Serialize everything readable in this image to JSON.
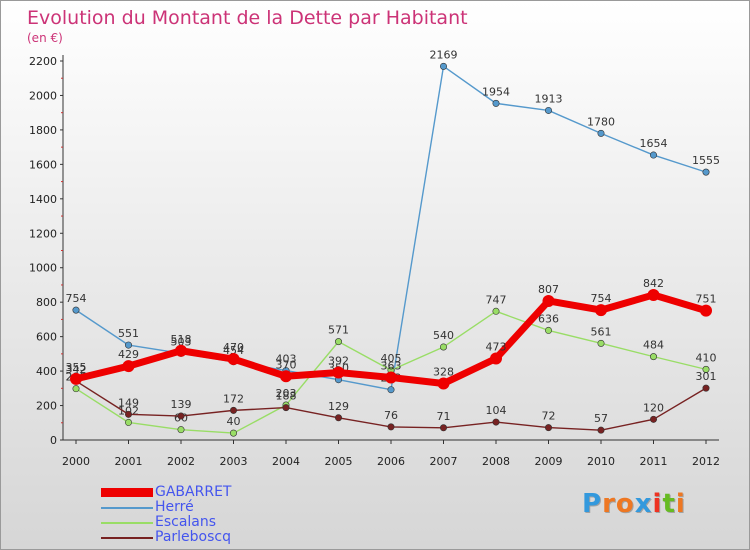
{
  "header": {
    "title": "Evolution du Montant de la Dette par Habitant",
    "subtitle": "(en €)"
  },
  "chart_data": {
    "type": "line",
    "x": [
      2000,
      2001,
      2002,
      2003,
      2004,
      2005,
      2006,
      2007,
      2008,
      2009,
      2010,
      2011,
      2012
    ],
    "ylim": [
      0,
      2200
    ],
    "yticks": [
      0,
      200,
      400,
      600,
      800,
      1000,
      1200,
      1400,
      1600,
      1800,
      2000,
      2200
    ],
    "grid": false,
    "legend_position": "bottom-left",
    "series": [
      {
        "name": "Herré",
        "color": "#5599cc",
        "values": [
          754,
          551,
          503,
          454,
          403,
          350,
          292,
          2169,
          1954,
          1913,
          1780,
          1654,
          1555
        ]
      },
      {
        "name": "Escalans",
        "color": "#99dd66",
        "values": [
          298,
          102,
          60,
          40,
          203,
          571,
          405,
          540,
          747,
          636,
          561,
          484,
          410
        ]
      },
      {
        "name": "Parleboscq",
        "color": "#772222",
        "values": [
          342,
          149,
          139,
          172,
          188,
          129,
          76,
          71,
          104,
          72,
          57,
          120,
          301
        ]
      },
      {
        "name": "GABARRET",
        "color": "#ee0000",
        "values": [
          355,
          429,
          518,
          470,
          370,
          392,
          363,
          328,
          473,
          807,
          754,
          842,
          751
        ]
      }
    ],
    "point_labels": {
      "Herré": [
        "754",
        "551",
        "503",
        "454",
        "403",
        "350",
        "292",
        "2169",
        "1954",
        "1913",
        "1780",
        "1654",
        "1555"
      ],
      "Escalans": [
        "298",
        "102",
        "60",
        "40",
        "203",
        "571",
        "405",
        "540",
        "747",
        "636",
        "561",
        "484",
        "410"
      ],
      "Parleboscq": [
        "342",
        "149",
        "139",
        "172",
        "188",
        "129",
        "76",
        "71",
        "104",
        "72",
        "57",
        "120",
        "301"
      ],
      "GABARRET": [
        "355",
        "429",
        "518",
        "470",
        "370",
        "392",
        "363",
        "328",
        "473",
        "807",
        "754",
        "842",
        "751"
      ]
    }
  },
  "legend": {
    "items": [
      {
        "label": "GABARRET",
        "color": "#ee0000",
        "text_color": "#4455ee",
        "thick": true
      },
      {
        "label": "Herré",
        "color": "#5599cc",
        "text_color": "#4455ee",
        "thick": false
      },
      {
        "label": "Escalans",
        "color": "#99dd66",
        "text_color": "#4455ee",
        "thick": false
      },
      {
        "label": "Parleboscq",
        "color": "#772222",
        "text_color": "#4455ee",
        "thick": false
      }
    ]
  },
  "logo": {
    "text": "Proxiti",
    "letter_colors": [
      "#3399dd",
      "#ee7722",
      "#ee7722",
      "#3399dd",
      "#ee3322",
      "#66bb22",
      "#ee7722"
    ]
  }
}
